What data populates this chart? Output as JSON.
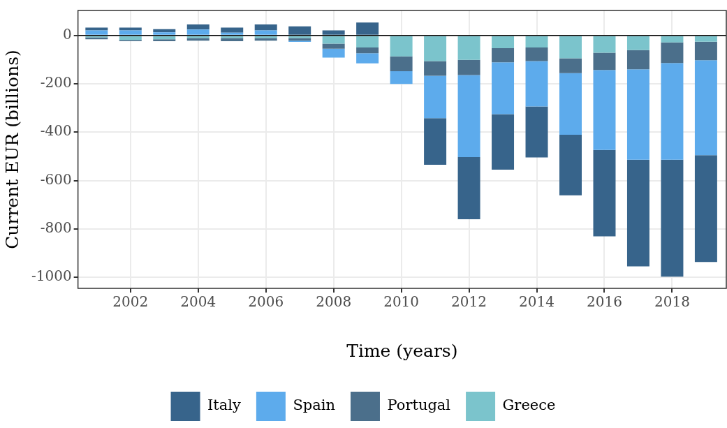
{
  "chart_data": {
    "type": "bar",
    "stacked": true,
    "xlabel": "Time (years)",
    "ylabel": "Current EUR (billions)",
    "x": [
      2001,
      2002,
      2003,
      2004,
      2005,
      2006,
      2007,
      2008,
      2009,
      2010,
      2011,
      2012,
      2013,
      2014,
      2015,
      2016,
      2017,
      2018,
      2019
    ],
    "xlim": [
      2000.45,
      2019.6
    ],
    "xticks": [
      2002,
      2004,
      2006,
      2008,
      2010,
      2012,
      2014,
      2016,
      2018
    ],
    "ylim": [
      -1046,
      103
    ],
    "yticks": [
      -1000,
      -800,
      -600,
      -400,
      -200,
      0
    ],
    "grid": true,
    "legend": "bottom",
    "ref_lines": [
      {
        "axis": "y",
        "value": 0,
        "color": "#000000"
      }
    ],
    "series": [
      {
        "name": "Greece",
        "color": "#7bc4cc",
        "values": [
          -8,
          -19,
          -16,
          -11,
          -11,
          -11,
          -11,
          -34,
          -50,
          -87,
          -106,
          -101,
          -53,
          -50,
          -95,
          -72,
          -61,
          -29,
          -26
        ]
      },
      {
        "name": "Portugal",
        "color": "#4b6f8b",
        "values": [
          -8,
          -5,
          -8,
          -11,
          -13,
          -11,
          -11,
          -21,
          -24,
          -61,
          -61,
          -63,
          -58,
          -56,
          -61,
          -71,
          -79,
          -85,
          -77
        ]
      },
      {
        "name": "Spain",
        "color": "#5dabec",
        "values": [
          21,
          21,
          13,
          24,
          11,
          21,
          -5,
          -37,
          -42,
          -53,
          -175,
          -339,
          -215,
          -188,
          -255,
          -331,
          -374,
          -400,
          -392
        ]
      },
      {
        "name": "Italy",
        "color": "#37648b",
        "values": [
          11,
          11,
          13,
          21,
          21,
          24,
          37,
          21,
          53,
          3,
          -193,
          -257,
          -229,
          -211,
          -250,
          -357,
          -441,
          -484,
          -442
        ]
      }
    ]
  }
}
